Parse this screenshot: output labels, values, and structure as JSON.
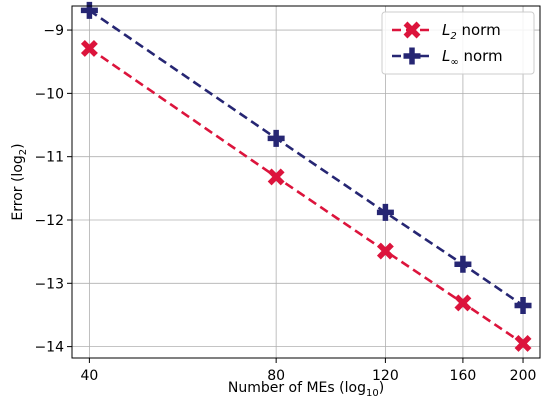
{
  "chart_data": {
    "type": "line",
    "xlabel": "Number of MEs (log",
    "xlabel_sub": "10",
    "xlabel_close": ")",
    "ylabel": "Error (log",
    "ylabel_sub": "2",
    "ylabel_close": ")",
    "x_scale": "log10",
    "y_scale": "log2 values",
    "x_ticks": [
      40,
      80,
      120,
      160,
      200
    ],
    "x_tick_labels": [
      "40",
      "80",
      "120",
      "160",
      "200"
    ],
    "y_ticks": [
      -9,
      -10,
      -11,
      -12,
      -13,
      -14
    ],
    "y_tick_labels": [
      "−9",
      "−10",
      "−11",
      "−12",
      "−13",
      "−14"
    ],
    "xlim": [
      37.5,
      213
    ],
    "ylim": [
      -14.18,
      -8.62
    ],
    "grid": true,
    "legend_position": "top-right",
    "series": [
      {
        "name": "L",
        "name_sub": "2",
        "name_suffix": " norm",
        "marker": "x",
        "color": "#dc143c",
        "x": [
          40,
          80,
          120,
          160,
          200
        ],
        "y": [
          -9.29,
          -11.32,
          -12.49,
          -13.31,
          -13.95
        ]
      },
      {
        "name": "L",
        "name_sub": "∞",
        "name_suffix": " norm",
        "marker": "plus",
        "color": "#262673",
        "x": [
          40,
          80,
          120,
          160,
          200
        ],
        "y": [
          -8.69,
          -10.71,
          -11.88,
          -12.7,
          -13.35
        ]
      }
    ]
  }
}
